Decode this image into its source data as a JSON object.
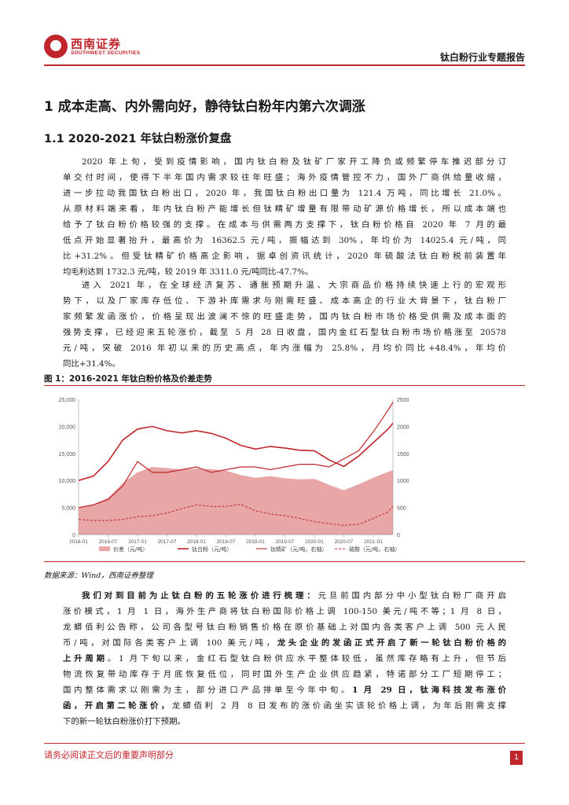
{
  "header": {
    "logo_name": "西南证券",
    "logo_en": "SOUTHWEST SECURITIES",
    "report_type": "钛白粉行业专题报告"
  },
  "title": "1 成本走高、内外需向好，静待钛白粉年内第六次调涨",
  "subtitle": "1.1 2020-2021 年钛白粉涨价复盘",
  "para1": [
    "2020 年上旬，受到疫情影响，国内钛白粉及钛矿厂家开工降负或频繁停车推迟部分订",
    "单交付时间，使得下半年国内需求较往年旺盛；海外疫情管控不力，国外厂商供给量收缩，",
    "进一步拉动我国钛白粉出口，2020 年，我国钛白粉出口量为 121.4 万吨，同比增长 21.0%。",
    "从原材料端来看，年内钛白粉产能增长但钛精矿增量有限带动矿源价格增长，所以成本端也",
    "给予了钛白粉价格较强的支撑。在成本与供需两方支撑下，钛白粉价格自 2020 年 7 月的最",
    "低点开始显著抬升，最高价为 16362.5 元/吨，振幅达到 30%，年均价为 14025.4 元/吨，同",
    "比+31.2%。但受钛精矿价格高企影响，据卓创资讯统计，2020 年硫酸法钛白粉税前装置年",
    "均毛利达到 1732.3 元/吨，较 2019 年 3311.0 元/吨同比-47.7%。"
  ],
  "para2": [
    "进入 2021 年，在全球经济复苏、通胀预期升温、大宗商品价格持续快速上行的宏观形",
    "势下，以及厂家库存低位、下游补库需求与刚需旺盛、成本高企的行业大背景下，钛白粉厂",
    "家频繁发函涨价，价格呈现出波澜不惊的旺盛走势，国内钛白粉市场价格受供需及成本面的",
    "强势支撑，已经迎来五轮涨价，截至 5 月 28 日收盘，国内金红石型钛白粉市场价格涨至 20578",
    "元/吨，突破 2016 年初以来的历史高点，年内涨幅为 25.8%，月均价同比+48.4%，年均价",
    "同比+31.4%。"
  ],
  "figure_caption": "图 1：2016-2021 年钛白粉价格及价差走势",
  "source": "数据来源：Wind，西南证券整理",
  "para3": {
    "lead_bold": "我们对到目前为止钛白粉的五轮涨价进行梳理：",
    "l1": "元旦前国内部分中小型钛白粉厂商开启",
    "l2": "涨价模式，1 月 1 日，海外生产商将钛白粉国际价格上调 100-150 美元/吨不等；1 月 8 日，",
    "l3": "龙蟒佰利公告称，公司各型号钛白粉销售价格在原价基础上对国内各类客户上调 500 元人民",
    "l4a": "币/吨，对国际各类客户上调 100 美元/吨，",
    "l4b": "龙头企业的发函正式开启了新一轮钛白粉价格的",
    "l5a": "上升周期",
    "l5b": "。1 月下旬以来，金红石型钛白粉供应水平整体较低，虽然库存略有上升，但节后",
    "l6": "物流恢复带动库存于月底恢复低位，同时国外生产企业供应趋紧，特诺部分工厂短期停工；",
    "l7a": "国内整体需求以刚需为主，部分进口产品排单至今年中旬。",
    "l7b": "1 月 29 日，钛海科技发布涨价",
    "l8a": "函，开启第二轮涨价，",
    "l8b": "龙蟒佰利 2 月 8 日发布的涨价函坐实该轮价格上调，为年后刚需支撑",
    "l9": "下的新一轮钛白粉涨价打下预期。"
  },
  "footer": {
    "notice": "请务必阅读正文后的重要声明部分",
    "page_number": "1"
  },
  "colors": {
    "brand_red": "#c0262b",
    "spread_fill": "#e8a6a6",
    "line_red": "#c0262b"
  },
  "chart_data": {
    "type": "line",
    "y_left_ticks": [
      "25,000",
      "20,000",
      "15,000",
      "10,000",
      "5,000",
      "0"
    ],
    "y_right_ticks": [
      "2500",
      "2000",
      "1500",
      "1000",
      "500",
      "0"
    ],
    "x_ticks": [
      "2016-01",
      "2016-07",
      "2017-01",
      "2017-07",
      "2018-01",
      "2018-07",
      "2019-01",
      "2019-07",
      "2020-01",
      "2020-07",
      "2021-01"
    ],
    "ylim_left": [
      0,
      25000
    ],
    "ylim_right": [
      0,
      2500
    ],
    "legend": [
      "价差（元/吨）",
      "钛白粉（元/吨）",
      "钛精矿（元/吨，右轴）",
      "硫酸（元/吨，右轴）"
    ],
    "series": [
      {
        "name": "价差（元/吨）",
        "type": "area",
        "axis": "left",
        "x": [
          "2016-01",
          "2016-04",
          "2016-07",
          "2016-10",
          "2017-01",
          "2017-04",
          "2017-07",
          "2017-10",
          "2018-01",
          "2018-04",
          "2018-07",
          "2018-10",
          "2019-01",
          "2019-04",
          "2019-07",
          "2019-10",
          "2020-01",
          "2020-04",
          "2020-07",
          "2020-10",
          "2021-01",
          "2021-04",
          "2021-05"
        ],
        "values": [
          5000,
          5600,
          6800,
          9500,
          11500,
          12500,
          12300,
          12000,
          12200,
          12100,
          11800,
          11000,
          10500,
          10800,
          10400,
          10200,
          10300,
          9200,
          8200,
          9300,
          10500,
          11600,
          11900
        ]
      },
      {
        "name": "钛白粉（元/吨）",
        "type": "line",
        "axis": "left",
        "x": [
          "2016-01",
          "2016-04",
          "2016-07",
          "2016-10",
          "2017-01",
          "2017-04",
          "2017-07",
          "2017-10",
          "2018-01",
          "2018-04",
          "2018-07",
          "2018-10",
          "2019-01",
          "2019-04",
          "2019-07",
          "2019-10",
          "2020-01",
          "2020-04",
          "2020-07",
          "2020-10",
          "2021-01",
          "2021-04",
          "2021-05"
        ],
        "values": [
          10000,
          10800,
          13500,
          17500,
          19500,
          20000,
          19200,
          18800,
          19200,
          18700,
          17800,
          16500,
          15800,
          16300,
          16000,
          15600,
          15500,
          13800,
          12600,
          14500,
          17000,
          19500,
          20578
        ]
      },
      {
        "name": "钛精矿（元/吨，右轴）",
        "type": "line",
        "axis": "right",
        "x": [
          "2016-01",
          "2016-04",
          "2016-07",
          "2016-10",
          "2017-01",
          "2017-04",
          "2017-07",
          "2017-10",
          "2018-01",
          "2018-04",
          "2018-07",
          "2018-10",
          "2019-01",
          "2019-04",
          "2019-07",
          "2019-10",
          "2020-01",
          "2020-04",
          "2020-07",
          "2020-10",
          "2021-01",
          "2021-04",
          "2021-05"
        ],
        "values": [
          500,
          550,
          650,
          900,
          1350,
          1150,
          1150,
          1200,
          1250,
          1150,
          1200,
          1250,
          1250,
          1200,
          1250,
          1300,
          1300,
          1250,
          1400,
          1550,
          1900,
          2300,
          2450
        ]
      },
      {
        "name": "硫酸（元/吨，右轴）",
        "type": "line",
        "axis": "right",
        "x": [
          "2016-01",
          "2016-04",
          "2016-07",
          "2016-10",
          "2017-01",
          "2017-04",
          "2017-07",
          "2017-10",
          "2018-01",
          "2018-04",
          "2018-07",
          "2018-10",
          "2019-01",
          "2019-04",
          "2019-07",
          "2019-10",
          "2020-01",
          "2020-04",
          "2020-07",
          "2020-10",
          "2021-01",
          "2021-04",
          "2021-05"
        ],
        "values": [
          280,
          260,
          260,
          280,
          330,
          350,
          400,
          480,
          550,
          520,
          520,
          560,
          440,
          380,
          350,
          300,
          240,
          200,
          170,
          190,
          300,
          420,
          520
        ]
      }
    ]
  }
}
